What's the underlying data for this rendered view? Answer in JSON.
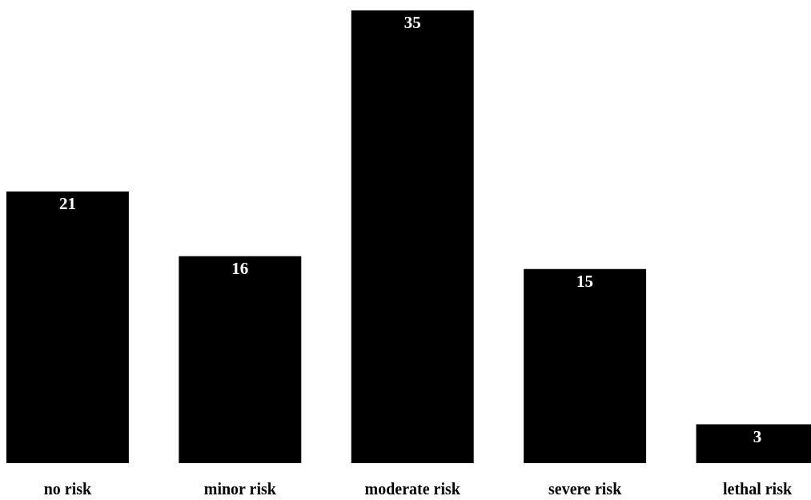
{
  "chart_data": {
    "type": "bar",
    "categories": [
      "no risk",
      "minor risk",
      "moderate risk",
      "severe risk",
      "lethal risk"
    ],
    "values": [
      21,
      16,
      35,
      15,
      3
    ],
    "color": "#000000",
    "data_labels": true
  }
}
